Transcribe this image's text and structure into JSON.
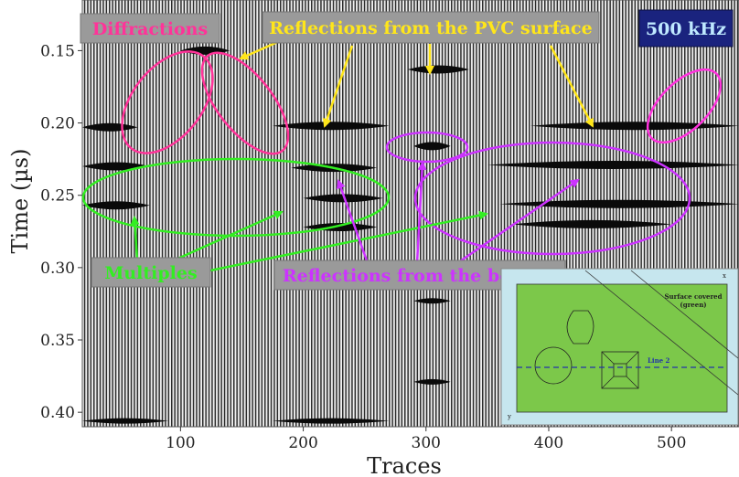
{
  "chart_data": {
    "type": "heatmap",
    "title": "",
    "xlabel": "Traces",
    "ylabel": "Time (µs)",
    "xlim": [
      20,
      555
    ],
    "ylim": [
      0.115,
      0.41
    ],
    "x_ticks": [
      100,
      200,
      300,
      400,
      500
    ],
    "y_ticks": [
      0.15,
      0.2,
      0.25,
      0.3,
      0.35,
      0.4
    ],
    "x_tick_labels": [
      "100",
      "200",
      "300",
      "400",
      "500"
    ],
    "y_tick_labels": [
      "0.15",
      "0.20",
      "0.25",
      "0.30",
      "0.35",
      "0.40"
    ],
    "frequency_label": "500 kHz",
    "reflector_bands": [
      {
        "kind": "pvc",
        "x_start": 20,
        "x_end": 65,
        "y": 0.203
      },
      {
        "kind": "pvc",
        "x_start": 100,
        "x_end": 140,
        "y": 0.15
      },
      {
        "kind": "pvc",
        "x_start": 175,
        "x_end": 270,
        "y": 0.202
      },
      {
        "kind": "pvc",
        "x_start": 285,
        "x_end": 335,
        "y": 0.163
      },
      {
        "kind": "pvc",
        "x_start": 385,
        "x_end": 555,
        "y": 0.202
      },
      {
        "kind": "pvc",
        "x_start": 290,
        "x_end": 320,
        "y": 0.216
      },
      {
        "kind": "bottom",
        "x_start": 20,
        "x_end": 75,
        "y": 0.23
      },
      {
        "kind": "bottom",
        "x_start": 190,
        "x_end": 260,
        "y": 0.231
      },
      {
        "kind": "bottom",
        "x_start": 350,
        "x_end": 555,
        "y": 0.229
      },
      {
        "kind": "multiple",
        "x_start": 20,
        "x_end": 75,
        "y": 0.257
      },
      {
        "kind": "multiple",
        "x_start": 200,
        "x_end": 265,
        "y": 0.252
      },
      {
        "kind": "multiple",
        "x_start": 360,
        "x_end": 555,
        "y": 0.256
      },
      {
        "kind": "multiple",
        "x_start": 200,
        "x_end": 260,
        "y": 0.272
      },
      {
        "kind": "multiple",
        "x_start": 370,
        "x_end": 500,
        "y": 0.27
      },
      {
        "kind": "deep",
        "x_start": 290,
        "x_end": 320,
        "y": 0.323
      },
      {
        "kind": "deep",
        "x_start": 290,
        "x_end": 320,
        "y": 0.379
      },
      {
        "kind": "deep",
        "x_start": 20,
        "x_end": 90,
        "y": 0.406
      },
      {
        "kind": "deep",
        "x_start": 175,
        "x_end": 270,
        "y": 0.406
      }
    ],
    "annotations": {
      "diffractions": "Diffractions",
      "pvc_reflections": "Reflections from the PVC surface",
      "multiples": "Multiples",
      "bottom_reflections": "Reflections from the bottom"
    },
    "inset": {
      "surface_label_line1": "Surface covered",
      "surface_label_line2": "(green)",
      "line_label": "Line 2",
      "axis_x": "x",
      "axis_y": "y"
    },
    "colors": {
      "diffractions": "#ff3399",
      "pvc": "#ffe61a",
      "multiples": "#33ee22",
      "bottom": "#cc33ff",
      "freq_box": "#1a237e",
      "label_box": "#9a9a9a",
      "inset_bg": "#c6e6ee",
      "inset_green": "#7cc84a",
      "inset_line": "#2233aa"
    }
  }
}
